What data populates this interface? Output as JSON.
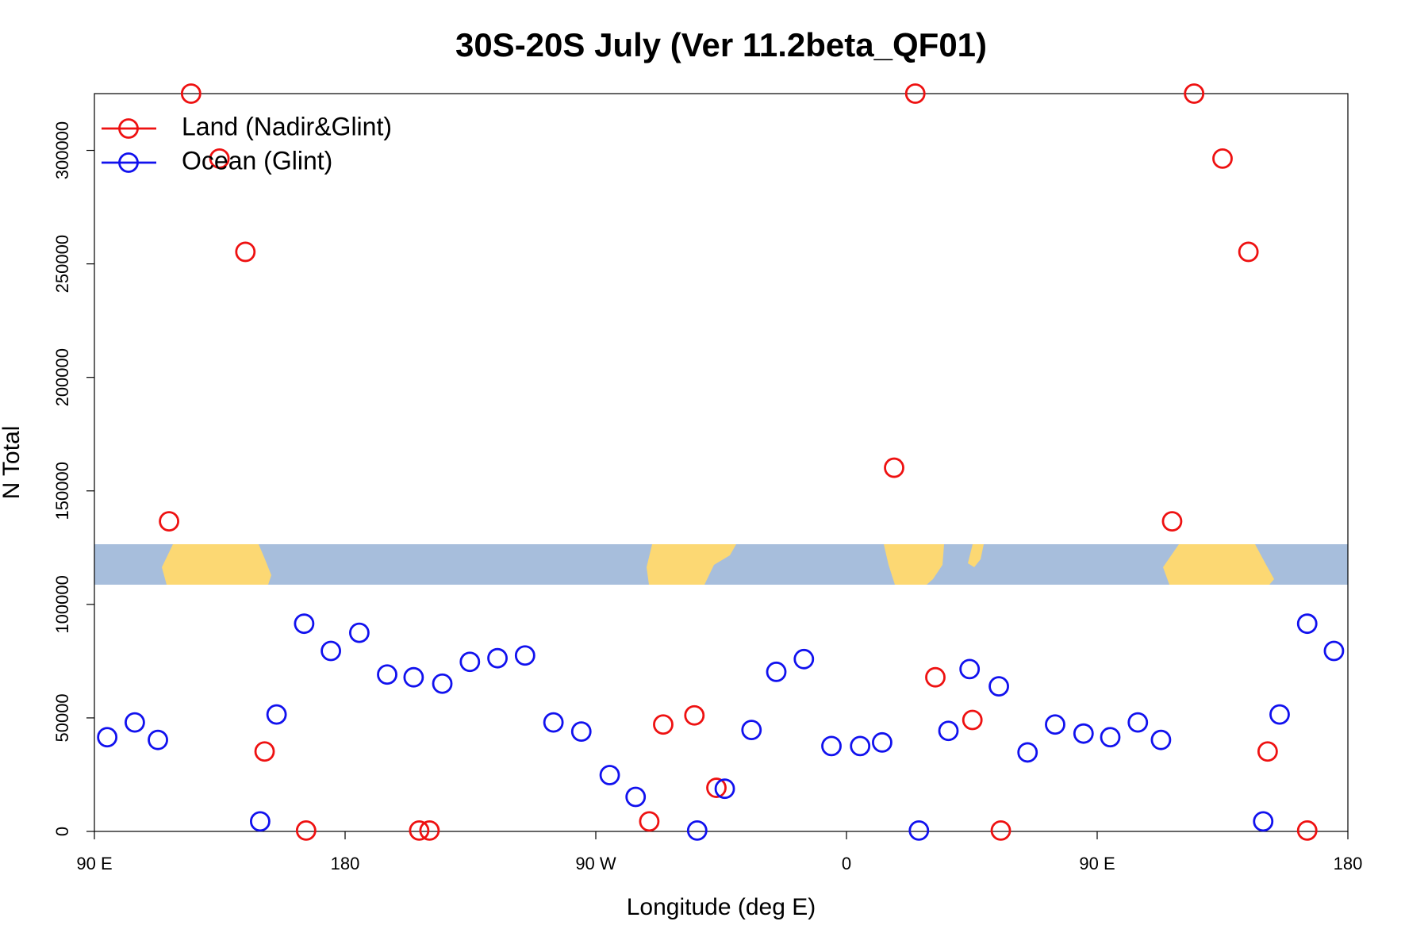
{
  "chart_data": {
    "type": "scatter",
    "title": "30S-20S July (Ver 11.2beta_QF01)",
    "x_label": "Longitude (deg E)",
    "y_label": "N Total",
    "xlim": [
      90,
      540
    ],
    "ylim": [
      0,
      325000
    ],
    "xticks": [
      {
        "value": 90,
        "label": "90 E"
      },
      180,
      {
        "value": 270,
        "label": "90 W"
      },
      {
        "value": 360,
        "label": "0"
      },
      {
        "value": 450,
        "label": "90 E"
      },
      {
        "value": 540,
        "label": "180"
      }
    ],
    "yticks": [
      0,
      50000,
      100000,
      150000,
      200000,
      250000,
      300000
    ],
    "legend": "top-left",
    "series": [
      {
        "name": "Land (Nadir&Glint)",
        "color": "#ee1111",
        "x": [
          116.8,
          124.7,
          134.9,
          144.2,
          151.1,
          166.0,
          206.6,
          210.3,
          289.2,
          294.2,
          305.4,
          313.3,
          377.1,
          384.7,
          391.9,
          405.2,
          415.4,
          476.9,
          484.8,
          495.0,
          504.3,
          511.2,
          525.4
        ],
        "values": [
          136600,
          325000,
          296400,
          255300,
          35200,
          400,
          400,
          400,
          4400,
          47100,
          51100,
          19200,
          160200,
          325000,
          67900,
          49100,
          400,
          136600,
          325000,
          296400,
          255300,
          35200,
          400
        ]
      },
      {
        "name": "Ocean (Glint)",
        "color": "#1111ee",
        "x": [
          94.6,
          104.5,
          112.8,
          149.5,
          155.4,
          165.3,
          174.9,
          185.1,
          195.1,
          204.6,
          214.9,
          224.8,
          234.7,
          244.6,
          254.8,
          264.8,
          275.0,
          284.3,
          306.4,
          316.3,
          325.9,
          334.8,
          344.7,
          354.6,
          364.9,
          372.8,
          386.0,
          396.6,
          404.2,
          414.7,
          425.0,
          434.9,
          445.1,
          454.7,
          464.6,
          472.9,
          509.6,
          515.5,
          525.4,
          535.0
        ],
        "values": [
          41500,
          48000,
          40300,
          4400,
          51500,
          91500,
          79500,
          87500,
          69100,
          67900,
          65100,
          74700,
          76300,
          77500,
          48000,
          44000,
          24800,
          15200,
          400,
          18800,
          44700,
          70300,
          75900,
          37600,
          37600,
          39200,
          400,
          44300,
          71500,
          63900,
          34800,
          47100,
          43100,
          41500,
          48000,
          40300,
          4400,
          51500,
          91500,
          79500
        ]
      }
    ]
  }
}
